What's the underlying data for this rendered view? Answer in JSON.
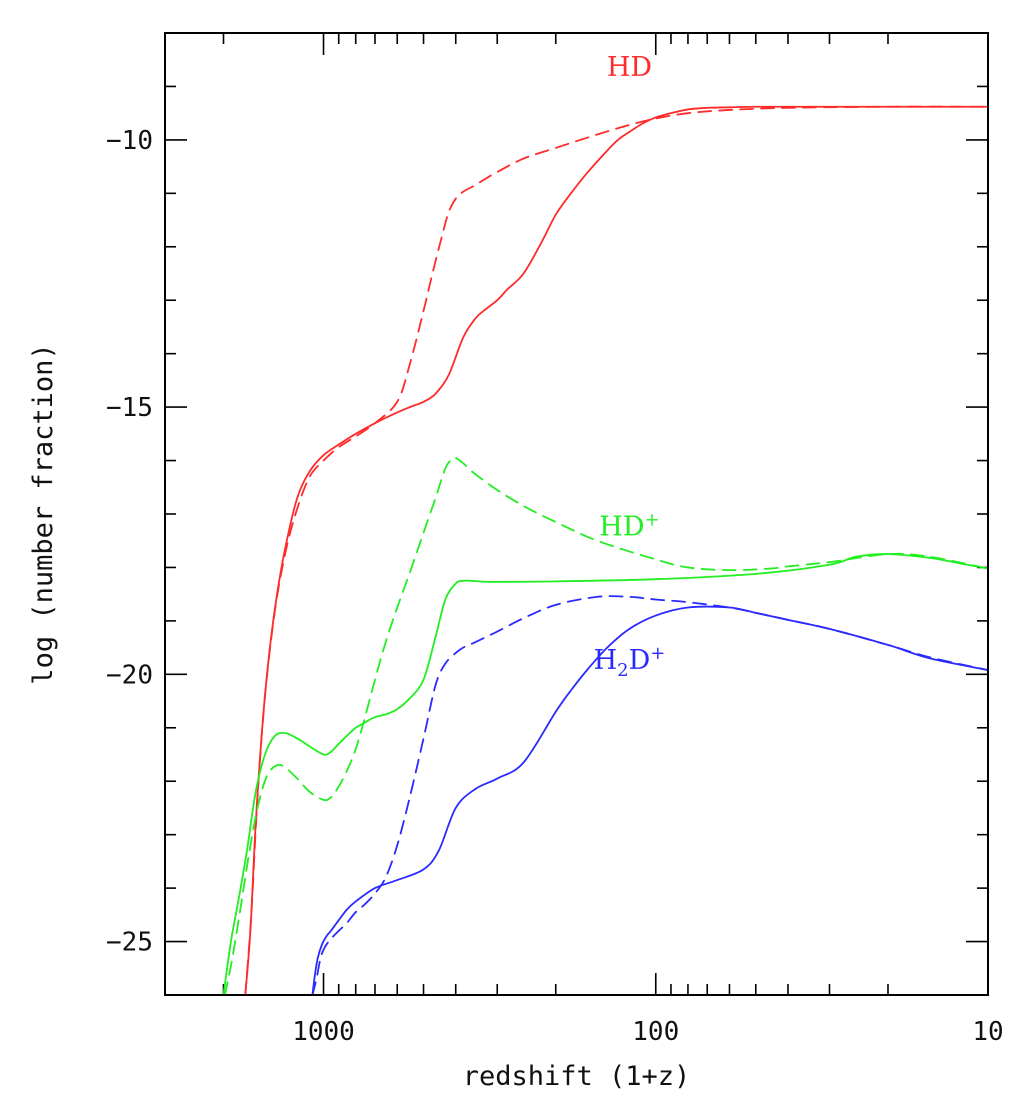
{
  "chart_data": {
    "type": "line",
    "title": "",
    "xlabel": "redshift (1+z)",
    "ylabel": "log (number fraction)",
    "x_scale": "log",
    "x_reversed": true,
    "xlim": [
      3000,
      10
    ],
    "ylim": [
      -26,
      -8
    ],
    "x_ticks": [
      1000,
      100,
      10
    ],
    "x_tick_labels": [
      "1000",
      "100",
      "10"
    ],
    "y_ticks": [
      -25,
      -20,
      -15,
      -10
    ],
    "y_tick_labels": [
      "−25",
      "−20",
      "−15",
      "−10"
    ],
    "grid": false,
    "legend": "none",
    "curve_labels": [
      {
        "base": "HD",
        "sub": "",
        "sup": "",
        "color": "#ff2a2a",
        "x": 120,
        "y": -8.8
      },
      {
        "base": "HD",
        "sub": "",
        "sup": "+",
        "color": "#22ee22",
        "x": 120,
        "y": -17.4
      },
      {
        "base": "H",
        "sub": "2",
        "sup": "+",
        "base2": "D",
        "color": "#2a2aff",
        "x": 120,
        "y": -19.9
      }
    ],
    "series": [
      {
        "color": "#ff2a2a",
        "style": "solid",
        "x": [
          1720,
          1660,
          1600,
          1520,
          1450,
          1380,
          1300,
          1200,
          1100,
          1000,
          900,
          800,
          700,
          600,
          550,
          500,
          460,
          420,
          380,
          350,
          330,
          300,
          280,
          250,
          220,
          200,
          180,
          160,
          140,
          130,
          120,
          110,
          100,
          90,
          80,
          70,
          60,
          50,
          40,
          30,
          20,
          10
        ],
        "y": [
          -26,
          -24.8,
          -22.8,
          -20.8,
          -19.5,
          -18.5,
          -17.6,
          -16.7,
          -16.2,
          -15.9,
          -15.7,
          -15.5,
          -15.3,
          -15.1,
          -15.0,
          -14.9,
          -14.75,
          -14.4,
          -13.7,
          -13.35,
          -13.2,
          -13.0,
          -12.8,
          -12.5,
          -11.9,
          -11.4,
          -11.0,
          -10.6,
          -10.2,
          -10.0,
          -9.85,
          -9.7,
          -9.58,
          -9.5,
          -9.43,
          -9.4,
          -9.39,
          -9.38,
          -9.38,
          -9.38,
          -9.38,
          -9.38
        ]
      },
      {
        "color": "#ff2a2a",
        "style": "dashed",
        "x": [
          1720,
          1650,
          1580,
          1500,
          1400,
          1300,
          1200,
          1100,
          1000,
          900,
          800,
          700,
          600,
          550,
          500,
          470,
          440,
          420,
          400,
          380,
          350,
          330,
          300,
          250,
          200,
          150,
          120,
          100,
          80,
          60,
          40,
          20,
          10
        ],
        "y": [
          -26,
          -24.5,
          -22.3,
          -20.4,
          -18.8,
          -17.7,
          -16.9,
          -16.3,
          -16.0,
          -15.75,
          -15.55,
          -15.3,
          -14.9,
          -14.2,
          -13.2,
          -12.5,
          -11.8,
          -11.35,
          -11.1,
          -10.97,
          -10.85,
          -10.75,
          -10.6,
          -10.35,
          -10.15,
          -9.9,
          -9.72,
          -9.6,
          -9.5,
          -9.44,
          -9.4,
          -9.38,
          -9.38
        ]
      },
      {
        "color": "#22ee22",
        "style": "solid",
        "x": [
          2000,
          1900,
          1800,
          1700,
          1600,
          1500,
          1400,
          1300,
          1200,
          1100,
          1000,
          950,
          900,
          850,
          800,
          750,
          700,
          650,
          600,
          550,
          500,
          460,
          430,
          400,
          380,
          360,
          340,
          320,
          300,
          200,
          100,
          50,
          30,
          25,
          20,
          15,
          12,
          10
        ],
        "y": [
          -26,
          -25,
          -24.2,
          -23.3,
          -22.2,
          -21.5,
          -21.15,
          -21.1,
          -21.2,
          -21.35,
          -21.5,
          -21.45,
          -21.3,
          -21.15,
          -21.0,
          -20.9,
          -20.8,
          -20.75,
          -20.65,
          -20.45,
          -20.1,
          -19.3,
          -18.6,
          -18.3,
          -18.25,
          -18.25,
          -18.26,
          -18.27,
          -18.27,
          -18.26,
          -18.22,
          -18.12,
          -17.95,
          -17.8,
          -17.75,
          -17.82,
          -17.93,
          -18.02
        ]
      },
      {
        "color": "#22ee22",
        "style": "dashed",
        "x": [
          1980,
          1880,
          1780,
          1680,
          1580,
          1480,
          1380,
          1300,
          1200,
          1100,
          1000,
          950,
          900,
          850,
          800,
          750,
          700,
          650,
          600,
          550,
          500,
          460,
          430,
          410,
          400,
          380,
          350,
          300,
          250,
          200,
          150,
          100,
          80,
          60,
          45,
          40,
          30,
          20,
          15,
          10
        ],
        "y": [
          -26,
          -25.3,
          -24.4,
          -23.4,
          -22.5,
          -21.9,
          -21.7,
          -21.75,
          -21.95,
          -22.2,
          -22.35,
          -22.3,
          -22.1,
          -21.8,
          -21.4,
          -20.8,
          -20.1,
          -19.4,
          -18.75,
          -18.1,
          -17.35,
          -16.7,
          -16.15,
          -15.97,
          -15.95,
          -16.05,
          -16.25,
          -16.55,
          -16.85,
          -17.15,
          -17.5,
          -17.85,
          -18.0,
          -18.05,
          -18.02,
          -17.98,
          -17.9,
          -17.75,
          -17.8,
          -18.02
        ]
      },
      {
        "color": "#2a2aff",
        "style": "solid",
        "x": [
          1080,
          1060,
          1040,
          1010,
          980,
          950,
          900,
          850,
          800,
          700,
          600,
          500,
          450,
          400,
          350,
          300,
          250,
          200,
          180,
          160,
          140,
          120,
          100,
          80,
          60,
          50,
          40,
          30,
          20,
          15,
          10
        ],
        "y": [
          -26,
          -25.6,
          -25.3,
          -25.05,
          -24.9,
          -24.8,
          -24.6,
          -24.4,
          -24.25,
          -24.0,
          -23.85,
          -23.65,
          -23.3,
          -22.5,
          -22.15,
          -21.95,
          -21.65,
          -20.7,
          -20.3,
          -19.9,
          -19.5,
          -19.15,
          -18.9,
          -18.75,
          -18.75,
          -18.85,
          -18.98,
          -19.15,
          -19.45,
          -19.7,
          -19.92
        ]
      },
      {
        "color": "#2a2aff",
        "style": "dashed",
        "x": [
          1080,
          1050,
          1020,
          990,
          950,
          900,
          850,
          800,
          750,
          700,
          650,
          600,
          550,
          500,
          460,
          430,
          400,
          380,
          350,
          300,
          250,
          200,
          150,
          120,
          100,
          80,
          60,
          50,
          40,
          30,
          20,
          15,
          10
        ],
        "y": [
          -26,
          -25.7,
          -25.3,
          -25.1,
          -24.95,
          -24.8,
          -24.65,
          -24.45,
          -24.3,
          -24.1,
          -23.8,
          -23.2,
          -22.3,
          -21.2,
          -20.2,
          -19.8,
          -19.6,
          -19.5,
          -19.4,
          -19.2,
          -18.95,
          -18.7,
          -18.55,
          -18.55,
          -18.6,
          -18.65,
          -18.75,
          -18.85,
          -18.98,
          -19.15,
          -19.45,
          -19.68,
          -19.92
        ]
      }
    ]
  }
}
